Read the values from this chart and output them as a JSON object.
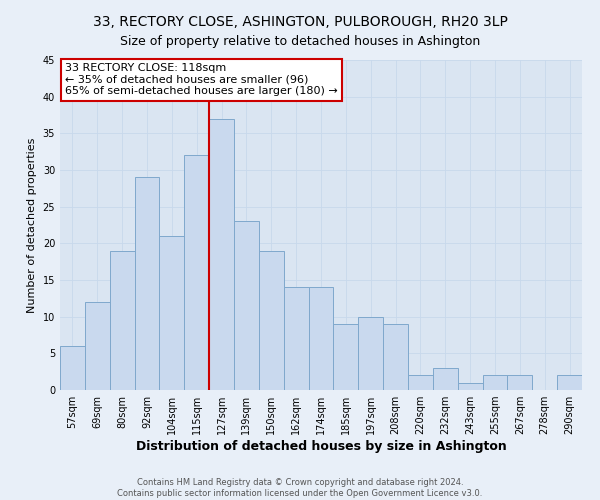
{
  "title": "33, RECTORY CLOSE, ASHINGTON, PULBOROUGH, RH20 3LP",
  "subtitle": "Size of property relative to detached houses in Ashington",
  "xlabel": "Distribution of detached houses by size in Ashington",
  "ylabel": "Number of detached properties",
  "bar_labels": [
    "57sqm",
    "69sqm",
    "80sqm",
    "92sqm",
    "104sqm",
    "115sqm",
    "127sqm",
    "139sqm",
    "150sqm",
    "162sqm",
    "174sqm",
    "185sqm",
    "197sqm",
    "208sqm",
    "220sqm",
    "232sqm",
    "243sqm",
    "255sqm",
    "267sqm",
    "278sqm",
    "290sqm"
  ],
  "bar_values": [
    6,
    12,
    19,
    29,
    21,
    32,
    37,
    23,
    19,
    14,
    14,
    9,
    10,
    9,
    2,
    3,
    1,
    2,
    2,
    0,
    2
  ],
  "bar_color": "#c9d9ee",
  "bar_edge_color": "#7fa8cc",
  "vline_x": 5.5,
  "vline_color": "#cc0000",
  "annotation_line1": "33 RECTORY CLOSE: 118sqm",
  "annotation_line2": "← 35% of detached houses are smaller (96)",
  "annotation_line3": "65% of semi-detached houses are larger (180) →",
  "ylim": [
    0,
    45
  ],
  "yticks": [
    0,
    5,
    10,
    15,
    20,
    25,
    30,
    35,
    40,
    45
  ],
  "footer1": "Contains HM Land Registry data © Crown copyright and database right 2024.",
  "footer2": "Contains public sector information licensed under the Open Government Licence v3.0.",
  "bg_color": "#e8eff8",
  "plot_bg_color": "#dae5f2",
  "grid_color": "#c8d8ec",
  "title_fontsize": 10,
  "subtitle_fontsize": 9,
  "xlabel_fontsize": 9,
  "ylabel_fontsize": 8,
  "tick_fontsize": 7,
  "annotation_fontsize": 8,
  "footer_fontsize": 6
}
